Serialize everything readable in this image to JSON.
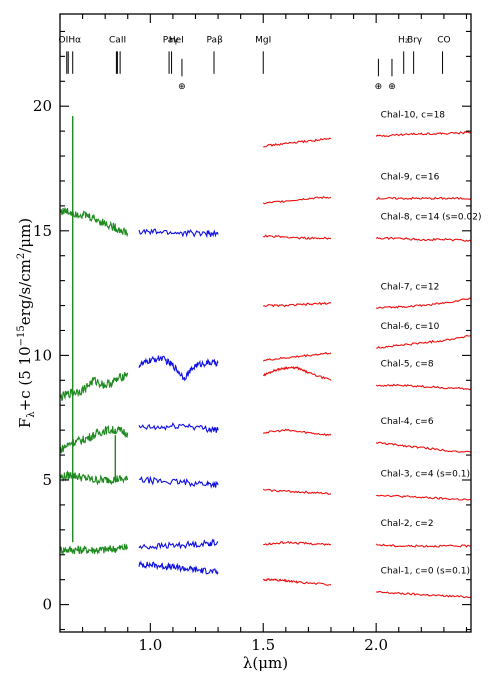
{
  "chart_data": {
    "type": "line",
    "xlabel": "λ(μm)",
    "ylabel_parts": {
      "main": "F",
      "sub": "λ",
      "mid": "+c (5 10",
      "exp": "−15",
      "unit": "erg/s/cm",
      "unit_exp": "2",
      "tail": "/μm)"
    },
    "xlim": [
      0.6,
      2.42
    ],
    "ylim": [
      -1.1,
      23.7
    ],
    "x_ticks": [
      1.0,
      1.5,
      2.0
    ],
    "x_tick_labels": [
      "1.0",
      "1.5",
      "2.0"
    ],
    "y_ticks": [
      0,
      5,
      10,
      15,
      20
    ],
    "y_tick_labels": [
      "0",
      "5",
      "10",
      "15",
      "20"
    ],
    "colors": {
      "optical": "#1f8a1f",
      "j_band": "#1010e0",
      "hk_band": "#ee1010",
      "hk_overlap": "#3030d0"
    },
    "spectral_lines": [
      {
        "label": "OI",
        "x": [
          0.63,
          0.6364
        ]
      },
      {
        "label": "Hα",
        "x": [
          0.6563
        ]
      },
      {
        "label": "CaII",
        "x": [
          0.8498,
          0.8542,
          0.8662
        ]
      },
      {
        "label": "Paγ",
        "x": [
          1.094
        ]
      },
      {
        "label": "HeI",
        "x": [
          1.083
        ]
      },
      {
        "label": "Paβ",
        "x": [
          1.282
        ]
      },
      {
        "label": "MgI",
        "x": [
          1.5
        ]
      },
      {
        "label": "H₂",
        "x": [
          2.122
        ]
      },
      {
        "label": "Brγ",
        "x": [
          2.166
        ]
      },
      {
        "label": "CO",
        "x": [
          2.294
        ]
      }
    ],
    "telluric_symbol": "⊕",
    "telluric_x": [
      1.14,
      2.01,
      2.07
    ],
    "series": [
      {
        "name": "Chal-1, c=0 (s=0.1)",
        "segments": [
          {
            "band": "optical",
            "x": [],
            "y": []
          },
          {
            "band": "j",
            "x": [
              0.95,
              1.0,
              1.05,
              1.1,
              1.15,
              1.2,
              1.25,
              1.3
            ],
            "y": [
              1.6,
              1.6,
              1.55,
              1.5,
              1.45,
              1.4,
              1.35,
              1.3
            ]
          },
          {
            "band": "h",
            "x": [
              1.5,
              1.55,
              1.6,
              1.65,
              1.8
            ],
            "y": [
              1.0,
              1.0,
              0.95,
              0.9,
              0.8
            ]
          },
          {
            "band": "k",
            "x": [
              2.0,
              2.1,
              2.2,
              2.3,
              2.42
            ],
            "y": [
              0.5,
              0.45,
              0.4,
              0.35,
              0.3
            ]
          }
        ]
      },
      {
        "name": "Chal-2, c=2",
        "segments": [
          {
            "band": "optical",
            "x": [
              0.6,
              0.65,
              0.7,
              0.75,
              0.8,
              0.85,
              0.9
            ],
            "y": [
              2.2,
              2.2,
              2.2,
              2.2,
              2.2,
              2.25,
              2.3
            ]
          },
          {
            "band": "j",
            "x": [
              0.95,
              1.05,
              1.15,
              1.25,
              1.3
            ],
            "y": [
              2.3,
              2.35,
              2.4,
              2.45,
              2.5
            ]
          },
          {
            "band": "h",
            "x": [
              1.5,
              1.6,
              1.7,
              1.8
            ],
            "y": [
              2.4,
              2.5,
              2.45,
              2.4
            ]
          },
          {
            "band": "k",
            "x": [
              2.0,
              2.1,
              2.2,
              2.3,
              2.42
            ],
            "y": [
              2.4,
              2.35,
              2.35,
              2.35,
              2.35
            ]
          }
        ]
      },
      {
        "name": "Chal-3, c=4 (s=0.1)",
        "segments": [
          {
            "band": "optical",
            "x": [
              0.6,
              0.65,
              0.7,
              0.75,
              0.8,
              0.85,
              0.9
            ],
            "y": [
              5.1,
              5.2,
              5.1,
              5.0,
              5.0,
              5.05,
              5.0
            ]
          },
          {
            "band": "j",
            "x": [
              0.95,
              1.05,
              1.15,
              1.25,
              1.3
            ],
            "y": [
              5.0,
              4.95,
              4.9,
              4.85,
              4.8
            ]
          },
          {
            "band": "h",
            "x": [
              1.5,
              1.6,
              1.7,
              1.8
            ],
            "y": [
              4.6,
              4.55,
              4.5,
              4.45
            ]
          },
          {
            "band": "k",
            "x": [
              2.0,
              2.1,
              2.2,
              2.3,
              2.42
            ],
            "y": [
              4.4,
              4.35,
              4.3,
              4.25,
              4.2
            ]
          }
        ]
      },
      {
        "name": "Chal-4, c=6",
        "segments": [
          {
            "band": "optical",
            "x": [
              0.6,
              0.65,
              0.7,
              0.75,
              0.8,
              0.85,
              0.9
            ],
            "y": [
              6.2,
              6.5,
              6.6,
              6.8,
              7.0,
              7.0,
              6.9
            ]
          },
          {
            "band": "j",
            "x": [
              0.95,
              1.05,
              1.15,
              1.25,
              1.3
            ],
            "y": [
              7.1,
              7.1,
              7.2,
              7.05,
              7.0
            ]
          },
          {
            "band": "h",
            "x": [
              1.5,
              1.6,
              1.7,
              1.8
            ],
            "y": [
              6.9,
              7.0,
              6.9,
              6.8
            ]
          },
          {
            "band": "k",
            "x": [
              2.0,
              2.1,
              2.2,
              2.3,
              2.42
            ],
            "y": [
              6.5,
              6.4,
              6.3,
              6.2,
              6.1
            ]
          }
        ]
      },
      {
        "name": "Chal-5, c=8",
        "segments": [
          {
            "band": "optical",
            "x": [
              0.6,
              0.65,
              0.7,
              0.75,
              0.8,
              0.85,
              0.9
            ],
            "y": [
              8.3,
              8.5,
              8.6,
              9.0,
              8.8,
              9.0,
              9.3
            ]
          },
          {
            "band": "j",
            "x": [
              0.95,
              1.0,
              1.05,
              1.1,
              1.15,
              1.2,
              1.25,
              1.3
            ],
            "y": [
              9.6,
              9.8,
              9.9,
              9.6,
              9.1,
              9.6,
              9.7,
              9.7
            ]
          },
          {
            "band": "h",
            "x": [
              1.5,
              1.55,
              1.6,
              1.65,
              1.7,
              1.8
            ],
            "y": [
              9.2,
              9.4,
              9.5,
              9.5,
              9.3,
              9.0
            ]
          },
          {
            "band": "k",
            "x": [
              2.0,
              2.1,
              2.2,
              2.3,
              2.42
            ],
            "y": [
              8.8,
              8.8,
              8.75,
              8.7,
              8.65
            ]
          }
        ]
      },
      {
        "name": "Chal-6, c=10",
        "segments": [
          {
            "band": "h",
            "x": [
              1.5,
              1.6,
              1.7,
              1.8
            ],
            "y": [
              9.8,
              9.9,
              10.0,
              10.1
            ]
          },
          {
            "band": "k",
            "x": [
              2.0,
              2.1,
              2.2,
              2.3,
              2.42
            ],
            "y": [
              10.3,
              10.4,
              10.5,
              10.6,
              10.8
            ]
          }
        ]
      },
      {
        "name": "Chal-7, c=12",
        "segments": [
          {
            "band": "h",
            "x": [
              1.5,
              1.6,
              1.7,
              1.8
            ],
            "y": [
              12.0,
              12.0,
              12.05,
              12.1
            ]
          },
          {
            "band": "k",
            "x": [
              2.0,
              2.1,
              2.2,
              2.3,
              2.42
            ],
            "y": [
              11.9,
              11.95,
              12.0,
              12.1,
              12.3
            ]
          }
        ]
      },
      {
        "name": "Chal-8, c=14 (s=0.02)",
        "segments": [
          {
            "band": "optical",
            "x": [
              0.6,
              0.65,
              0.7,
              0.75,
              0.8,
              0.85,
              0.9
            ],
            "y": [
              15.8,
              15.75,
              15.65,
              15.5,
              15.3,
              15.1,
              14.9
            ]
          },
          {
            "band": "j",
            "x": [
              0.95,
              1.05,
              1.15,
              1.25,
              1.3
            ],
            "y": [
              14.95,
              14.95,
              14.9,
              14.9,
              14.85
            ]
          },
          {
            "band": "h",
            "x": [
              1.5,
              1.6,
              1.7,
              1.8
            ],
            "y": [
              14.8,
              14.75,
              14.7,
              14.7
            ]
          },
          {
            "band": "k",
            "x": [
              2.0,
              2.1,
              2.2,
              2.3,
              2.42
            ],
            "y": [
              14.7,
              14.7,
              14.65,
              14.65,
              14.6
            ]
          }
        ]
      },
      {
        "name": "Chal-9, c=16",
        "segments": [
          {
            "band": "h",
            "x": [
              1.5,
              1.6,
              1.7,
              1.8
            ],
            "y": [
              16.1,
              16.2,
              16.3,
              16.35
            ]
          },
          {
            "band": "k",
            "x": [
              2.0,
              2.1,
              2.2,
              2.3,
              2.42
            ],
            "y": [
              16.3,
              16.3,
              16.3,
              16.3,
              16.3
            ]
          }
        ]
      },
      {
        "name": "Chal-10, c=18",
        "segments": [
          {
            "band": "h",
            "x": [
              1.5,
              1.6,
              1.7,
              1.8
            ],
            "y": [
              18.4,
              18.5,
              18.6,
              18.7
            ]
          },
          {
            "band": "k",
            "x": [
              2.0,
              2.1,
              2.2,
              2.3,
              2.42
            ],
            "y": [
              18.8,
              18.85,
              18.9,
              18.9,
              18.95
            ]
          }
        ]
      }
    ],
    "halpha_spike": {
      "x": 0.6563,
      "y_base": 2.5,
      "y_peak": 19.6
    },
    "optical_spike_2": {
      "x": 0.845,
      "y_base": 4.9,
      "y_peak": 6.8
    }
  }
}
